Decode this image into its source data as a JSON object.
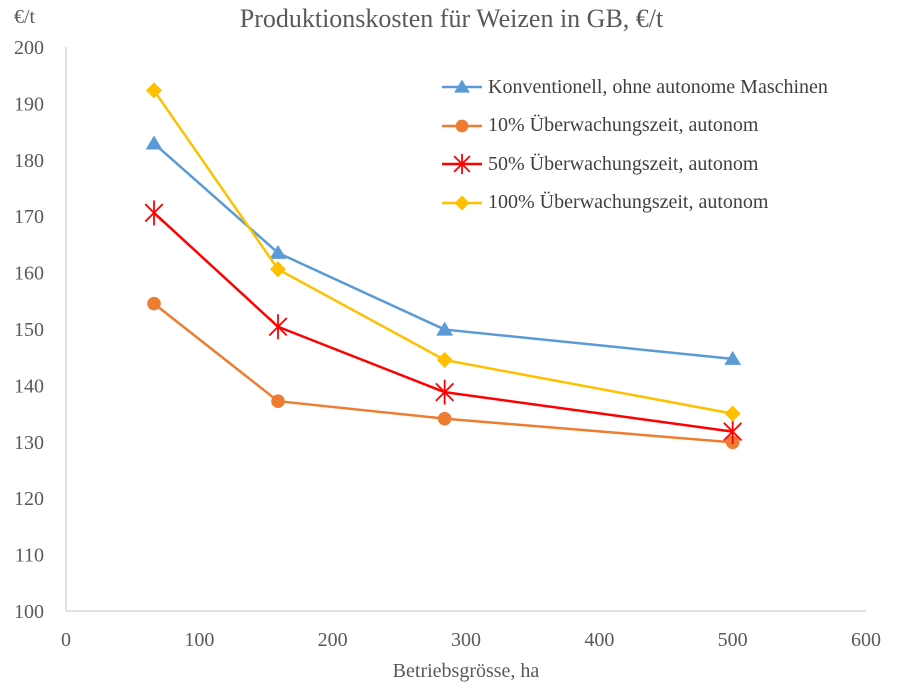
{
  "chart_data": {
    "type": "line",
    "title": "Produktionskosten für Weizen in GB, €/t",
    "ylabel": "€/t",
    "xlabel": "Betriebsgrösse, ha",
    "xlim": [
      0,
      600
    ],
    "ylim": [
      100,
      200
    ],
    "xticks": [
      0,
      100,
      200,
      300,
      400,
      500,
      600
    ],
    "yticks": [
      100,
      110,
      120,
      130,
      140,
      150,
      160,
      170,
      180,
      190,
      200
    ],
    "grid": false,
    "legend_position": "top-right",
    "series": [
      {
        "name": "Konventionell, ohne autonome Maschinen",
        "color": "#5B9BD5",
        "marker": "triangle",
        "x": [
          66,
          159,
          284,
          500
        ],
        "y": [
          182.9,
          163.5,
          149.9,
          144.7
        ]
      },
      {
        "name": "10% Überwachungszeit, autonom",
        "color": "#ED7D31",
        "marker": "circle",
        "x": [
          66,
          159,
          284,
          500
        ],
        "y": [
          154.5,
          137.2,
          134.1,
          129.9
        ]
      },
      {
        "name": "50% Überwachungszeit, autonom",
        "color": "#FF0000",
        "marker": "star",
        "x": [
          66,
          159,
          284,
          500
        ],
        "y": [
          170.6,
          150.4,
          138.8,
          131.8
        ]
      },
      {
        "name": "100% Überwachungszeit, autonom",
        "color": "#FFC000",
        "marker": "diamond",
        "x": [
          66,
          159,
          284,
          500
        ],
        "y": [
          192.3,
          160.6,
          144.5,
          135.0
        ]
      }
    ]
  }
}
